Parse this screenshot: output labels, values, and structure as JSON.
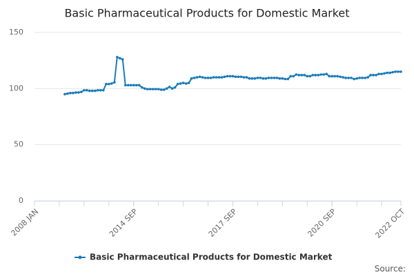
{
  "chart_data": {
    "type": "line",
    "title": "Basic Pharmaceutical Products for Domestic Market",
    "source": "Source:",
    "categories": [
      "2008 JAN",
      null,
      null,
      null,
      null,
      null,
      null,
      null,
      null,
      null,
      null,
      null,
      null,
      null,
      null,
      null,
      null,
      null,
      null,
      null,
      null,
      null,
      null,
      null,
      null,
      null,
      null,
      null,
      null,
      null,
      null,
      null,
      null,
      null,
      null,
      null,
      "2014 SEP",
      null,
      null,
      null,
      null,
      null,
      null,
      null,
      null,
      null,
      null,
      null,
      null,
      null,
      null,
      null,
      null,
      null,
      null,
      null,
      null,
      null,
      null,
      null,
      null,
      null,
      null,
      null,
      null,
      null,
      null,
      null,
      null,
      null,
      null,
      null,
      "2017 SEP",
      null,
      null,
      null,
      null,
      null,
      null,
      null,
      null,
      null,
      null,
      null,
      null,
      null,
      null,
      null,
      null,
      null,
      null,
      null,
      null,
      null,
      null,
      null,
      null,
      null,
      null,
      null,
      null,
      null,
      null,
      null,
      null,
      null,
      null,
      null,
      "2020 SEP",
      null,
      null,
      null,
      null,
      null,
      null,
      null,
      null,
      null,
      null,
      null,
      null,
      null,
      null,
      null,
      null,
      null,
      null,
      null,
      null,
      null,
      null,
      null,
      null,
      "2022 OCT"
    ],
    "series": [
      {
        "name": "Basic Pharmaceutical Products for Domestic Market",
        "color": "#1a7bb9",
        "values": [
          null,
          null,
          null,
          null,
          null,
          null,
          null,
          null,
          null,
          null,
          null,
          95,
          95.5,
          96,
          96,
          96.5,
          96.5,
          97,
          98.5,
          98.5,
          98,
          98,
          98,
          98.5,
          98.5,
          98.5,
          104,
          104,
          104.5,
          105.5,
          128,
          127,
          126,
          103,
          103,
          103,
          103,
          103,
          103,
          101,
          100,
          99.5,
          99.5,
          99.5,
          99.5,
          99.5,
          99,
          99,
          100,
          101.5,
          100,
          101,
          104,
          104.5,
          105,
          104.5,
          105,
          109,
          109.5,
          110,
          110.5,
          110,
          109.5,
          109.5,
          109.5,
          110,
          110,
          110,
          110,
          110.5,
          111,
          111,
          111,
          110.5,
          110.5,
          110.5,
          110,
          110,
          109,
          109,
          109,
          109.5,
          109.5,
          109,
          109,
          109.5,
          109.5,
          109.5,
          109.5,
          109,
          109,
          108.5,
          108.5,
          111,
          111,
          112.5,
          112,
          112,
          112,
          111,
          111,
          112,
          112,
          112,
          112.5,
          112.5,
          113,
          111,
          111,
          111,
          111,
          110.5,
          110,
          109.5,
          109.5,
          109.5,
          108.5,
          109,
          109.5,
          109.5,
          109.5,
          110,
          112,
          112,
          112,
          113,
          113,
          113.5,
          114,
          114,
          114.5,
          115,
          115,
          115
        ]
      }
    ],
    "ylim": [
      0,
      150
    ],
    "yticks": [
      0,
      50,
      100,
      150
    ],
    "grid": true,
    "legend": "bottom"
  }
}
